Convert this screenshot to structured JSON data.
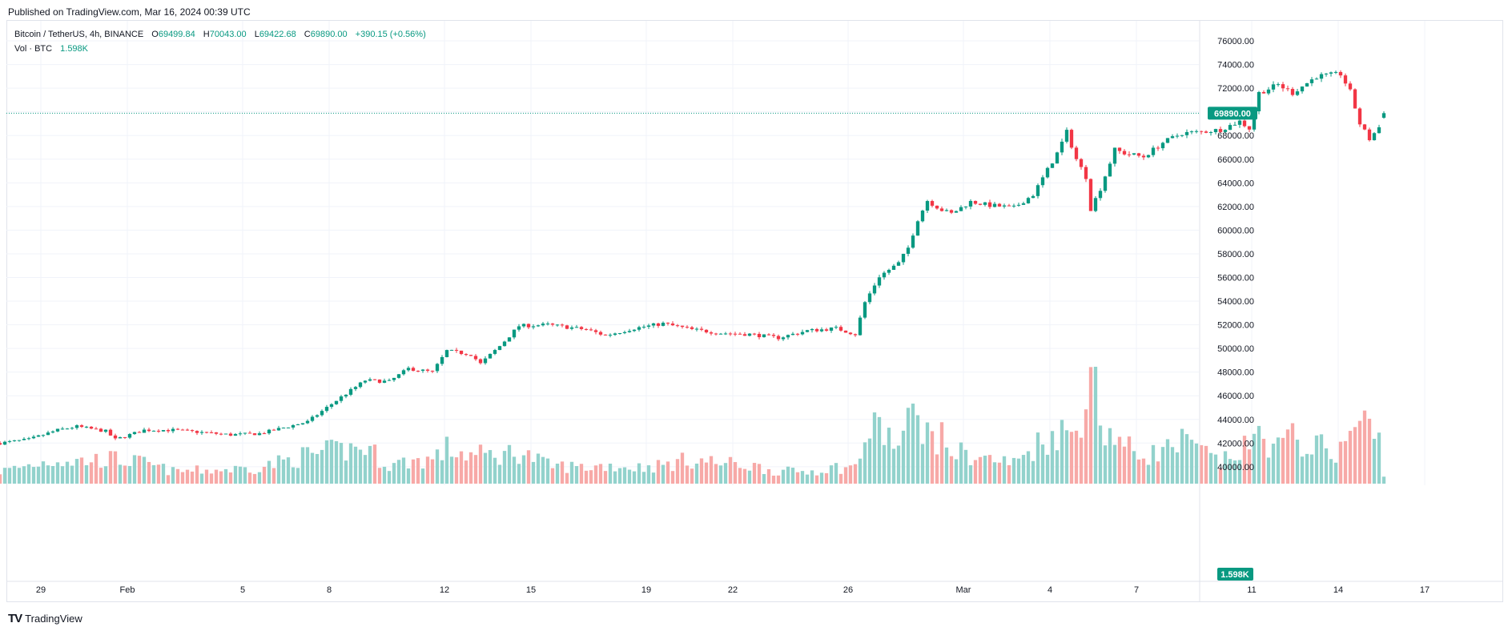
{
  "header": {
    "published": "Published on TradingView.com, Mar 16, 2024 00:39 UTC"
  },
  "legend": {
    "symbol": "Bitcoin / TetherUS, 4h, BINANCE",
    "open_label": "O",
    "open": "69499.84",
    "high_label": "H",
    "high": "70043.00",
    "low_label": "L",
    "low": "69422.68",
    "close_label": "C",
    "close": "69890.00",
    "change": "+390.15 (+0.56%)",
    "vol_label": "Vol · BTC",
    "vol_value": "1.598K"
  },
  "footer": {
    "brand": "TradingView"
  },
  "chart_data": {
    "type": "candlestick",
    "interval": "4h",
    "symbol": "BTCUSDT",
    "exchange": "BINANCE",
    "x_start": "2024-01-28",
    "x_tick_labels": [
      "29",
      "Feb",
      "5",
      "8",
      "12",
      "15",
      "19",
      "22",
      "26",
      "Mar",
      "4",
      "7",
      "11",
      "14",
      "17"
    ],
    "y_tick_labels": [
      "40000.00",
      "42000.00",
      "44000.00",
      "46000.00",
      "48000.00",
      "50000.00",
      "52000.00",
      "54000.00",
      "56000.00",
      "58000.00",
      "60000.00",
      "62000.00",
      "64000.00",
      "66000.00",
      "68000.00",
      "70000.00",
      "72000.00",
      "74000.00",
      "76000.00"
    ],
    "ylim": [
      39000,
      76500
    ],
    "last_price": 69890.0,
    "last_price_label": "69890.00",
    "last_volume_label": "1.598K",
    "grid": true,
    "colors": {
      "up": "#089981",
      "down": "#f23645",
      "up_volume": "#92d2cc",
      "down_volume": "#f7a9a7",
      "price_line": "#089981",
      "grid": "#f0f3fa",
      "text": "#131722"
    },
    "anchors": [
      [
        "2024-01-28T00:00",
        42000,
        0.3
      ],
      [
        "2024-01-29T00:00",
        42300,
        0.45
      ],
      [
        "2024-01-30T00:00",
        43100,
        0.6
      ],
      [
        "2024-01-30T16:00",
        43400,
        0.55
      ],
      [
        "2024-01-31T16:00",
        43000,
        0.6
      ],
      [
        "2024-02-01T00:00",
        42300,
        0.6
      ],
      [
        "2024-02-02T00:00",
        43100,
        0.5
      ],
      [
        "2024-02-03T00:00",
        43100,
        0.3
      ],
      [
        "2024-02-05T00:00",
        42700,
        0.35
      ],
      [
        "2024-02-06T00:00",
        42800,
        0.4
      ],
      [
        "2024-02-07T16:00",
        43800,
        0.7
      ],
      [
        "2024-02-08T16:00",
        45600,
        0.8
      ],
      [
        "2024-02-09T16:00",
        47300,
        0.9
      ],
      [
        "2024-02-10T12:00",
        47200,
        0.45
      ],
      [
        "2024-02-11T04:00",
        48300,
        0.55
      ],
      [
        "2024-02-12T00:00",
        48000,
        0.6
      ],
      [
        "2024-02-12T12:00",
        49800,
        0.85
      ],
      [
        "2024-02-13T08:00",
        49500,
        0.7
      ],
      [
        "2024-02-13T16:00",
        48700,
        0.7
      ],
      [
        "2024-02-14T08:00",
        50200,
        0.7
      ],
      [
        "2024-02-15T00:00",
        51900,
        0.8
      ],
      [
        "2024-02-16T00:00",
        52000,
        0.45
      ],
      [
        "2024-02-17T08:00",
        51600,
        0.4
      ],
      [
        "2024-02-18T00:00",
        51100,
        0.45
      ],
      [
        "2024-02-19T00:00",
        51700,
        0.4
      ],
      [
        "2024-02-20T00:00",
        52100,
        0.45
      ],
      [
        "2024-02-21T00:00",
        51600,
        0.6
      ],
      [
        "2024-02-22T00:00",
        51300,
        0.5
      ],
      [
        "2024-02-23T00:00",
        51200,
        0.45
      ],
      [
        "2024-02-24T00:00",
        50900,
        0.3
      ],
      [
        "2024-02-25T00:00",
        51500,
        0.3
      ],
      [
        "2024-02-26T00:00",
        51700,
        0.4
      ],
      [
        "2024-02-26T16:00",
        51200,
        0.4
      ],
      [
        "2024-02-27T00:00",
        53900,
        1.1
      ],
      [
        "2024-02-27T12:00",
        56100,
        1.4
      ],
      [
        "2024-02-28T04:00",
        57200,
        0.9
      ],
      [
        "2024-02-28T12:00",
        58500,
        1.4
      ],
      [
        "2024-02-28T20:00",
        60900,
        2.0
      ],
      [
        "2024-02-29T04:00",
        62500,
        1.2
      ],
      [
        "2024-02-29T16:00",
        61700,
        1.1
      ],
      [
        "2024-03-01T00:00",
        61400,
        0.8
      ],
      [
        "2024-03-01T16:00",
        62400,
        0.7
      ],
      [
        "2024-03-02T08:00",
        62100,
        0.6
      ],
      [
        "2024-03-03T04:00",
        61900,
        0.5
      ],
      [
        "2024-03-03T20:00",
        63000,
        0.9
      ],
      [
        "2024-03-04T16:00",
        66500,
        1.3
      ],
      [
        "2024-03-05T00:00",
        68300,
        1.2
      ],
      [
        "2024-03-05T08:00",
        66000,
        1.3
      ],
      [
        "2024-03-05T16:00",
        64500,
        2.4
      ],
      [
        "2024-03-05T20:00",
        61800,
        3.0
      ],
      [
        "2024-03-06T04:00",
        63500,
        1.5
      ],
      [
        "2024-03-06T16:00",
        66800,
        1.2
      ],
      [
        "2024-03-07T00:00",
        66500,
        0.9
      ],
      [
        "2024-03-07T16:00",
        66200,
        0.7
      ],
      [
        "2024-03-08T08:00",
        67400,
        0.8
      ],
      [
        "2024-03-09T00:00",
        68200,
        1.0
      ],
      [
        "2024-03-09T16:00",
        68300,
        0.8
      ],
      [
        "2024-03-10T08:00",
        68500,
        0.5
      ],
      [
        "2024-03-11T00:00",
        69200,
        0.8
      ],
      [
        "2024-03-11T08:00",
        68600,
        0.9
      ],
      [
        "2024-03-11T16:00",
        71600,
        1.2
      ],
      [
        "2024-03-12T08:00",
        72300,
        0.9
      ],
      [
        "2024-03-12T20:00",
        71600,
        1.1
      ],
      [
        "2024-03-13T16:00",
        73000,
        0.9
      ],
      [
        "2024-03-14T12:00",
        73200,
        0.8
      ],
      [
        "2024-03-14T20:00",
        71700,
        1.3
      ],
      [
        "2024-03-15T04:00",
        69000,
        1.5
      ],
      [
        "2024-03-15T12:00",
        67700,
        1.4
      ],
      [
        "2024-03-15T20:00",
        68700,
        1.0
      ],
      [
        "2024-03-16T00:00",
        69890,
        0.16
      ]
    ]
  }
}
